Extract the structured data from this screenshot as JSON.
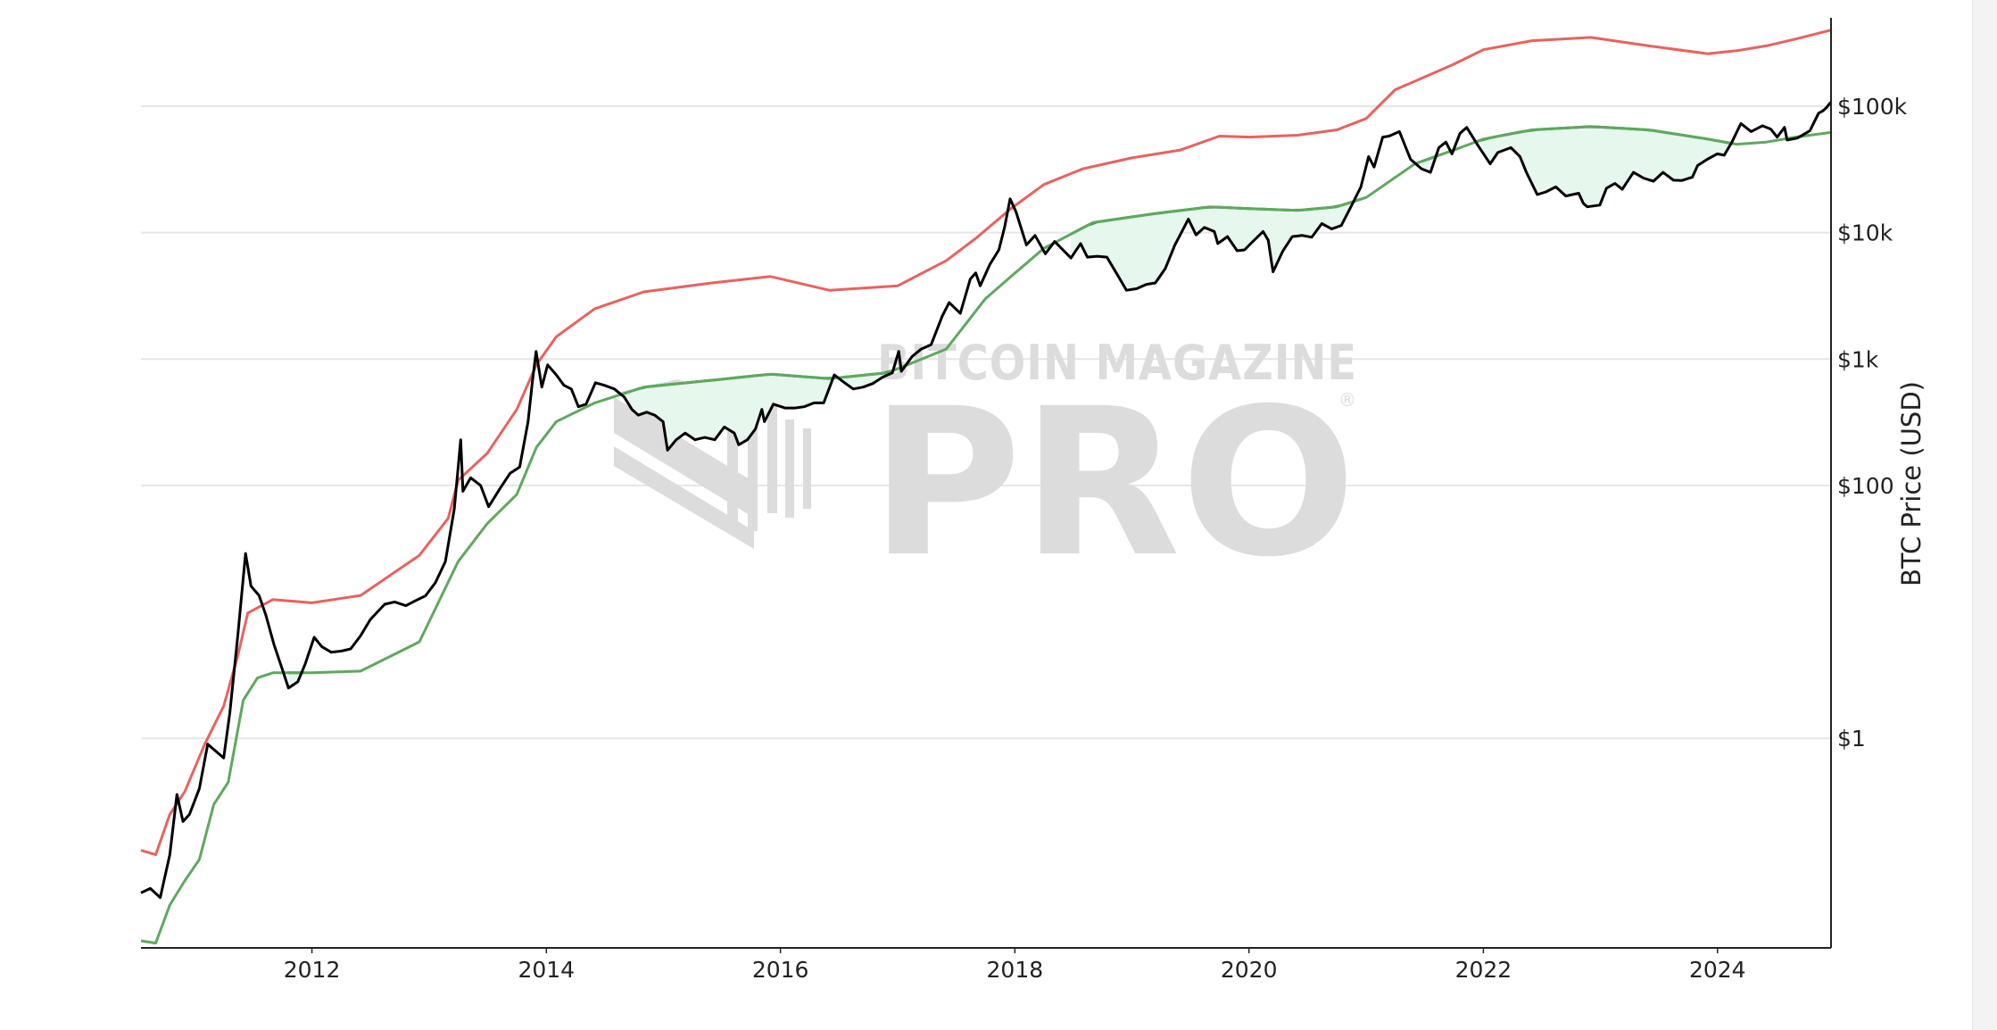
{
  "chart_data": {
    "type": "line",
    "title": "",
    "xlabel": "",
    "ylabel": "BTC Price (USD)",
    "y_axis_side": "right",
    "y_scale": "log",
    "ylim": [
      0.022,
      500000
    ],
    "xlim": [
      "2010-07-17",
      "2024-12-20"
    ],
    "x_ticks": [
      "2012",
      "2014",
      "2016",
      "2018",
      "2020",
      "2022",
      "2024"
    ],
    "y_ticks": [
      {
        "value": 1,
        "label": "$1"
      },
      {
        "value": 100,
        "label": "$100"
      },
      {
        "value": 1000,
        "label": "$1k"
      },
      {
        "value": 10000,
        "label": "$10k"
      },
      {
        "value": 100000,
        "label": "$100k"
      }
    ],
    "grid": "horizontal",
    "legend": "none",
    "watermark": {
      "line1": "BITCOIN MAGAZINE",
      "line2": "PRO",
      "mark": "®"
    },
    "colors": {
      "price": "#000000",
      "upper": "#e8625f",
      "lower": "#5fa85f",
      "lower_active": "#2a8a2a",
      "fill": "#e6f7ee",
      "grid": "#e6e6e6",
      "axis": "#222222"
    },
    "series": [
      {
        "key": "upper",
        "x": [
          "2010-07-17",
          "2010-09-01",
          "2010-10-15",
          "2010-12-01",
          "2011-02-01",
          "2011-04-01",
          "2011-05-15",
          "2011-06-15",
          "2011-09-01",
          "2012-01-01",
          "2012-06-01",
          "2012-12-01",
          "2013-03-01",
          "2013-04-01",
          "2013-07-01",
          "2013-10-01",
          "2013-12-01",
          "2014-02-01",
          "2014-06-01",
          "2014-11-01",
          "2015-06-01",
          "2015-12-01",
          "2016-06-01",
          "2017-01-01",
          "2017-06-01",
          "2017-09-01",
          "2017-12-20",
          "2018-04-01",
          "2018-08-01",
          "2019-01-01",
          "2019-06-01",
          "2019-10-01",
          "2020-01-01",
          "2020-06-01",
          "2020-10-01",
          "2021-01-01",
          "2021-04-01",
          "2021-07-01",
          "2021-10-01",
          "2022-01-01",
          "2022-06-01",
          "2022-12-01",
          "2023-06-01",
          "2023-12-01",
          "2024-03-01",
          "2024-06-01",
          "2024-09-01",
          "2024-12-20"
        ],
        "y": [
          0.13,
          0.12,
          0.25,
          0.38,
          0.9,
          1.8,
          4.5,
          9.8,
          12.5,
          11.8,
          13.5,
          28,
          55,
          110,
          180,
          400,
          900,
          1500,
          2500,
          3400,
          4000,
          4500,
          3500,
          3800,
          6000,
          9000,
          15500,
          24000,
          32000,
          39000,
          45000,
          58000,
          57000,
          59000,
          65000,
          80000,
          135000,
          170000,
          215000,
          280000,
          330000,
          350000,
          300000,
          260000,
          275000,
          300000,
          340000,
          400000
        ]
      },
      {
        "key": "lower",
        "x": [
          "2010-07-17",
          "2010-09-01",
          "2010-10-15",
          "2010-12-01",
          "2011-01-15",
          "2011-03-01",
          "2011-04-15",
          "2011-06-01",
          "2011-07-15",
          "2011-09-01",
          "2012-01-01",
          "2012-06-01",
          "2012-12-01",
          "2013-04-01",
          "2013-07-01",
          "2013-10-01",
          "2013-12-01",
          "2014-02-01",
          "2014-06-01",
          "2014-11-01",
          "2015-06-01",
          "2015-12-01",
          "2016-06-01",
          "2016-12-01",
          "2017-06-01",
          "2017-10-01",
          "2017-12-20",
          "2018-04-01",
          "2018-09-01",
          "2019-03-01",
          "2019-09-01",
          "2020-01-01",
          "2020-06-01",
          "2020-10-01",
          "2021-01-01",
          "2021-06-01",
          "2021-10-01",
          "2022-01-01",
          "2022-06-01",
          "2022-12-01",
          "2023-06-01",
          "2023-12-01",
          "2024-03-01",
          "2024-06-01",
          "2024-09-01",
          "2024-12-20"
        ],
        "y": [
          0.025,
          0.024,
          0.048,
          0.075,
          0.11,
          0.3,
          0.45,
          2.0,
          3.0,
          3.3,
          3.3,
          3.4,
          5.8,
          25,
          50,
          85,
          200,
          320,
          450,
          600,
          680,
          760,
          700,
          780,
          1200,
          3000,
          4500,
          7500,
          12000,
          14000,
          16000,
          15500,
          15000,
          16000,
          19000,
          35000,
          45000,
          55000,
          65000,
          69000,
          65000,
          55000,
          50000,
          52000,
          57000,
          62000
        ]
      },
      {
        "key": "price",
        "x": [
          "2010-07-17",
          "2010-08-15",
          "2010-09-15",
          "2010-10-15",
          "2010-11-06",
          "2010-11-25",
          "2010-12-15",
          "2011-01-15",
          "2011-02-10",
          "2011-03-05",
          "2011-04-01",
          "2011-04-20",
          "2011-05-15",
          "2011-06-08",
          "2011-06-25",
          "2011-07-20",
          "2011-08-10",
          "2011-09-05",
          "2011-10-01",
          "2011-10-20",
          "2011-11-18",
          "2011-12-10",
          "2012-01-08",
          "2012-02-01",
          "2012-03-01",
          "2012-04-01",
          "2012-05-01",
          "2012-06-01",
          "2012-07-01",
          "2012-08-15",
          "2012-09-15",
          "2012-10-20",
          "2012-11-20",
          "2012-12-20",
          "2013-01-20",
          "2013-02-20",
          "2013-03-20",
          "2013-04-09",
          "2013-04-16",
          "2013-05-10",
          "2013-06-10",
          "2013-07-05",
          "2013-08-10",
          "2013-09-10",
          "2013-10-10",
          "2013-11-05",
          "2013-11-18",
          "2013-11-30",
          "2013-12-18",
          "2014-01-05",
          "2014-02-01",
          "2014-02-25",
          "2014-03-20",
          "2014-04-11",
          "2014-05-05",
          "2014-06-03",
          "2014-07-01",
          "2014-08-01",
          "2014-09-01",
          "2014-09-25",
          "2014-10-15",
          "2014-11-10",
          "2014-12-05",
          "2014-12-31",
          "2015-01-14",
          "2015-02-10",
          "2015-03-10",
          "2015-04-10",
          "2015-05-10",
          "2015-06-10",
          "2015-07-10",
          "2015-08-10",
          "2015-08-24",
          "2015-09-20",
          "2015-10-15",
          "2015-11-04",
          "2015-11-12",
          "2015-12-10",
          "2016-01-15",
          "2016-02-15",
          "2016-03-15",
          "2016-04-15",
          "2016-05-15",
          "2016-06-17",
          "2016-07-15",
          "2016-08-15",
          "2016-09-15",
          "2016-10-15",
          "2016-11-15",
          "2016-12-15",
          "2017-01-04",
          "2017-01-12",
          "2017-02-15",
          "2017-03-15",
          "2017-04-15",
          "2017-05-20",
          "2017-06-10",
          "2017-07-15",
          "2017-08-15",
          "2017-09-01",
          "2017-09-15",
          "2017-10-15",
          "2017-11-12",
          "2017-11-30",
          "2017-12-17",
          "2018-01-05",
          "2018-02-06",
          "2018-03-05",
          "2018-04-06",
          "2018-05-05",
          "2018-06-25",
          "2018-07-25",
          "2018-08-15",
          "2018-09-15",
          "2018-10-15",
          "2018-11-20",
          "2018-12-15",
          "2019-01-15",
          "2019-02-15",
          "2019-03-15",
          "2019-04-15",
          "2019-05-15",
          "2019-06-26",
          "2019-07-20",
          "2019-08-15",
          "2019-09-15",
          "2019-09-26",
          "2019-10-26",
          "2019-11-25",
          "2019-12-18",
          "2020-01-15",
          "2020-02-14",
          "2020-03-01",
          "2020-03-12",
          "2020-03-16",
          "2020-04-15",
          "2020-05-15",
          "2020-06-15",
          "2020-07-15",
          "2020-08-15",
          "2020-09-15",
          "2020-10-15",
          "2020-11-15",
          "2020-12-15",
          "2021-01-08",
          "2021-01-25",
          "2021-02-21",
          "2021-03-13",
          "2021-04-14",
          "2021-05-19",
          "2021-06-22",
          "2021-07-20",
          "2021-08-15",
          "2021-09-06",
          "2021-09-25",
          "2021-10-20",
          "2021-11-10",
          "2021-12-15",
          "2022-01-22",
          "2022-02-15",
          "2022-03-28",
          "2022-04-25",
          "2022-05-15",
          "2022-06-18",
          "2022-07-15",
          "2022-08-15",
          "2022-09-15",
          "2022-10-25",
          "2022-11-09",
          "2022-11-21",
          "2022-12-30",
          "2023-01-20",
          "2023-02-15",
          "2023-03-10",
          "2023-04-14",
          "2023-05-15",
          "2023-06-15",
          "2023-07-15",
          "2023-08-17",
          "2023-09-11",
          "2023-10-15",
          "2023-10-31",
          "2023-11-30",
          "2023-12-31",
          "2024-01-22",
          "2024-02-15",
          "2024-03-14",
          "2024-04-15",
          "2024-05-20",
          "2024-06-15",
          "2024-07-05",
          "2024-07-28",
          "2024-08-05",
          "2024-09-06",
          "2024-10-15",
          "2024-11-11",
          "2024-11-25",
          "2024-12-05",
          "2024-12-17",
          "2024-12-20"
        ],
        "y": [
          0.06,
          0.065,
          0.055,
          0.12,
          0.36,
          0.22,
          0.25,
          0.4,
          0.9,
          0.8,
          0.7,
          1.6,
          6.5,
          29,
          16,
          13.5,
          9.5,
          5.5,
          3.5,
          2.5,
          2.8,
          3.8,
          6.3,
          5.3,
          4.8,
          4.9,
          5.1,
          6.5,
          8.7,
          11.5,
          12.0,
          11.2,
          12.3,
          13.4,
          17.0,
          25.0,
          65,
          230,
          90,
          115,
          100,
          68,
          95,
          125,
          140,
          320,
          650,
          1150,
          600,
          900,
          750,
          620,
          580,
          420,
          440,
          650,
          620,
          580,
          500,
          400,
          360,
          380,
          360,
          320,
          190,
          230,
          260,
          230,
          240,
          230,
          290,
          260,
          210,
          230,
          280,
          400,
          320,
          440,
          410,
          410,
          420,
          450,
          450,
          750,
          660,
          580,
          600,
          640,
          720,
          780,
          1150,
          800,
          1050,
          1200,
          1300,
          2200,
          2800,
          2300,
          4300,
          4800,
          3800,
          5600,
          7300,
          11000,
          18500,
          14500,
          8000,
          9500,
          6800,
          8500,
          6300,
          8200,
          6400,
          6500,
          6400,
          4500,
          3500,
          3600,
          3900,
          4000,
          5200,
          8000,
          12800,
          9600,
          11000,
          10200,
          8200,
          9300,
          7200,
          7300,
          8600,
          10200,
          8700,
          5700,
          4900,
          7100,
          9300,
          9500,
          9200,
          11800,
          10700,
          11400,
          16200,
          23000,
          40000,
          33000,
          57000,
          58000,
          63000,
          38000,
          32000,
          30000,
          47000,
          52000,
          42000,
          61000,
          68000,
          49000,
          35000,
          43000,
          47000,
          40000,
          30000,
          20000,
          21000,
          23000,
          19500,
          20500,
          17000,
          16000,
          16500,
          22500,
          24500,
          22000,
          30000,
          27000,
          25500,
          30000,
          26000,
          25800,
          27500,
          34000,
          38000,
          42000,
          41000,
          52000,
          73000,
          63000,
          70000,
          66000,
          57000,
          68000,
          54000,
          56000,
          64000,
          88000,
          92000,
          97000,
          106000,
          104000
        ]
      }
    ]
  }
}
